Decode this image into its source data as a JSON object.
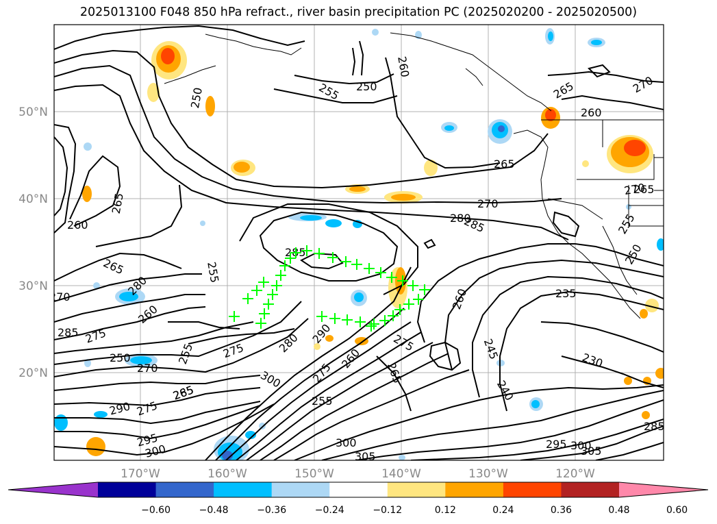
{
  "title": "2025013100 F048 850 hPa refract., river basin precipitation PC (2025020200 - 2025020500)",
  "lat_labels": [
    "50°N",
    "40°N",
    "30°N",
    "20°N"
  ],
  "lon_labels": [
    "170°W",
    "160°W",
    "150°W",
    "140°W",
    "130°W",
    "120°W"
  ],
  "colorbar": {
    "colors": [
      "#9933cc",
      "#000099",
      "#3366cc",
      "#00bfff",
      "#add8f5",
      "#ffffff",
      "#ffe680",
      "#ffa500",
      "#ff4500",
      "#b22222",
      "#ff88aa"
    ],
    "ticks": [
      "−0.60",
      "−0.48",
      "−0.36",
      "−0.24",
      "−0.12",
      "0.12",
      "0.24",
      "0.36",
      "0.48",
      "0.60"
    ]
  },
  "contour_labels": [
    "250",
    "255",
    "260",
    "250",
    "265",
    "270",
    "260",
    "265",
    "255",
    "260",
    "265",
    "270",
    "280",
    "285",
    "265",
    "255",
    "250",
    "235",
    "230",
    "285",
    "280",
    "270",
    "285",
    "275",
    "260",
    "255",
    "250",
    "270",
    "265",
    "275",
    "280",
    "290",
    "300",
    "275",
    "260",
    "265",
    "275",
    "260",
    "245",
    "240",
    "285",
    "275",
    "290",
    "295",
    "300",
    "255",
    "300",
    "305",
    "295",
    "300",
    "305",
    "285",
    "270",
    "265"
  ],
  "marker_color": "#00ff00"
}
